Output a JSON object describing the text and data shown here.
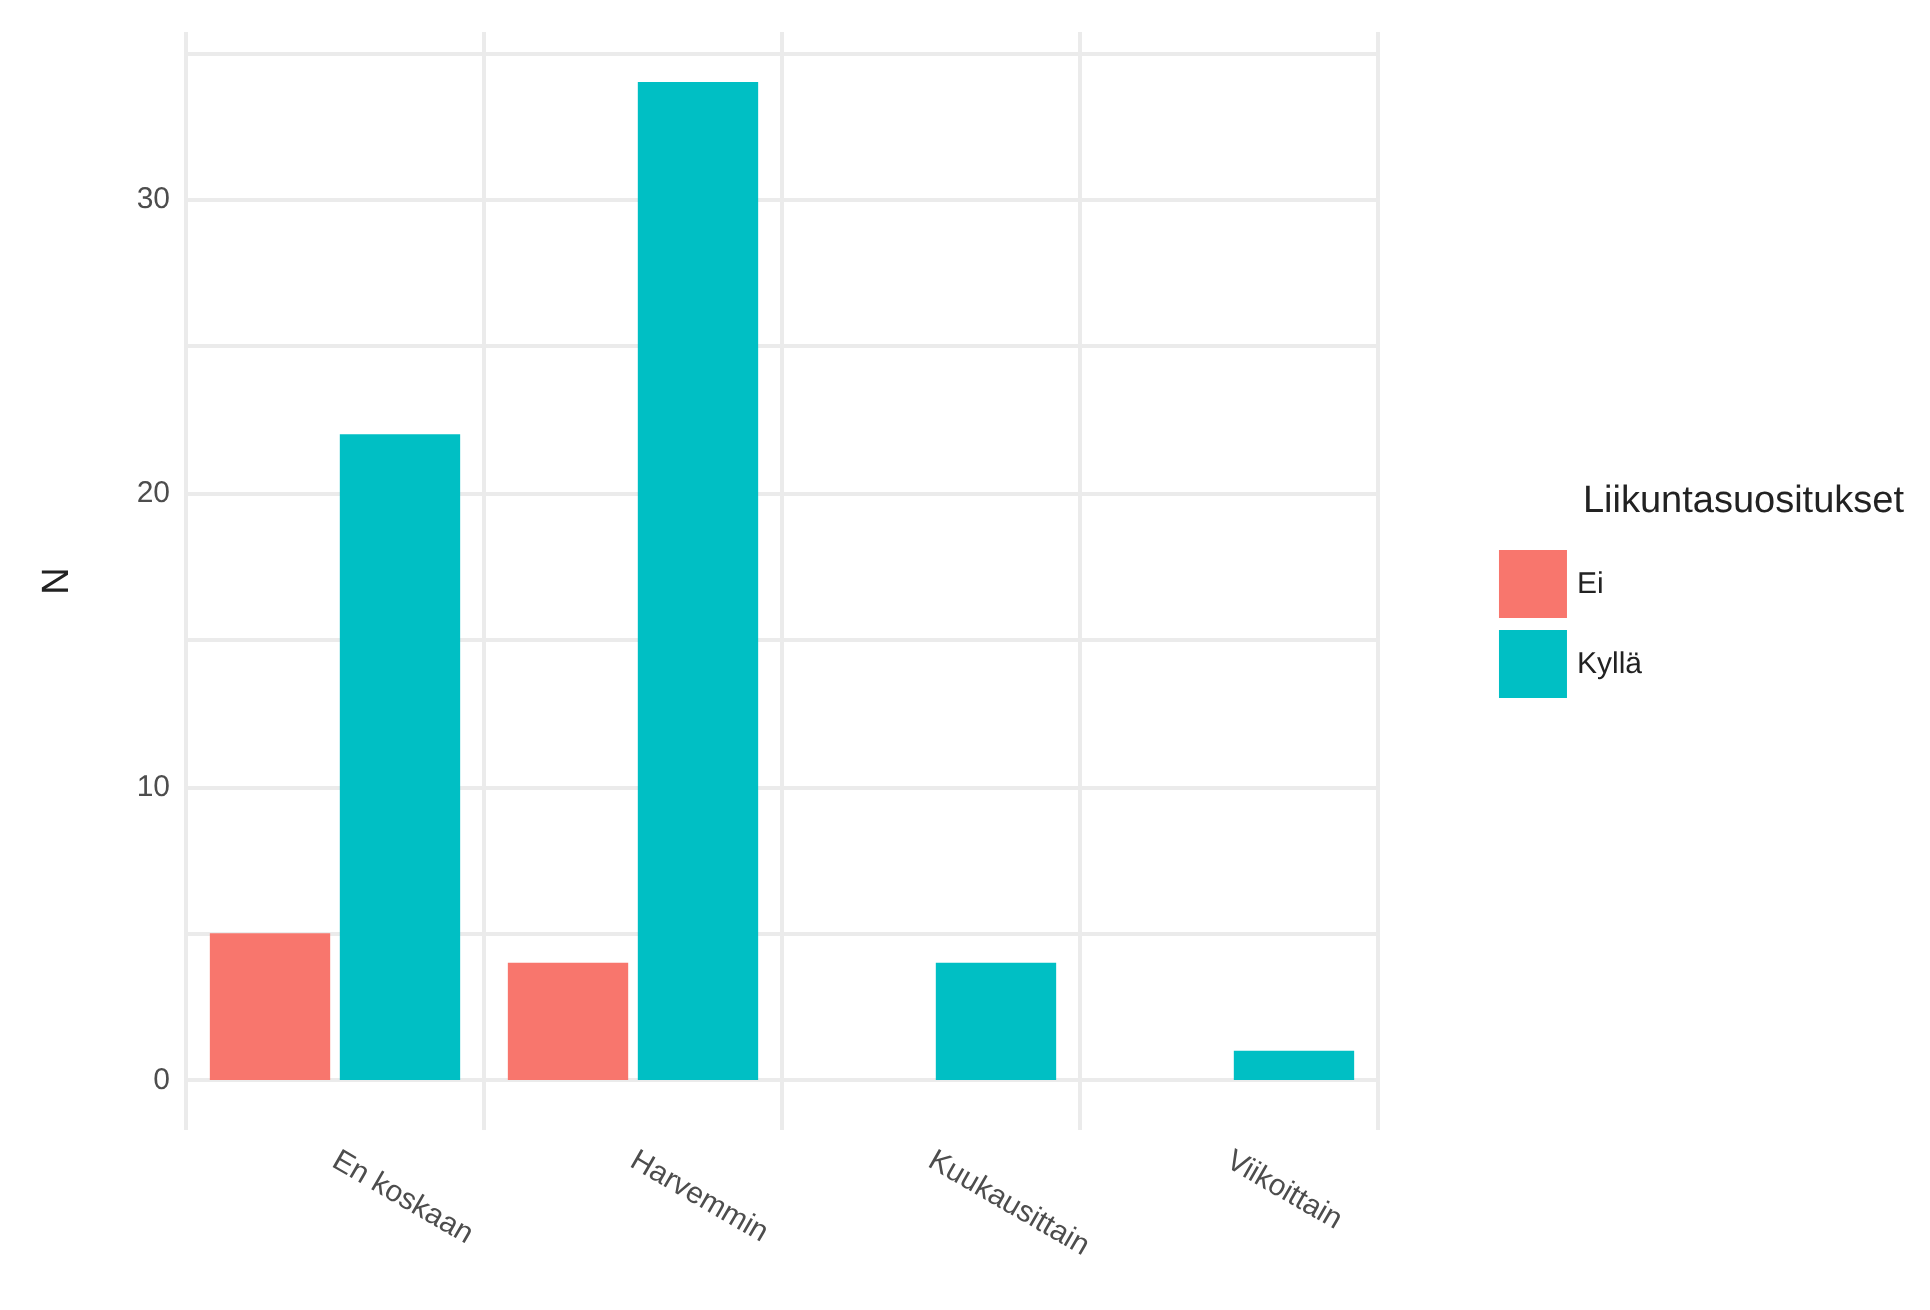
{
  "chart_data": {
    "type": "bar",
    "ylabel": "N",
    "legend_title": "Liikuntasuositukset",
    "categories": [
      "En koskaan",
      "Harvemmin",
      "Kuukausittain",
      "Viikoittain"
    ],
    "series": [
      {
        "name": "Ei",
        "color": "#f8766d",
        "values": [
          5,
          4,
          null,
          null
        ]
      },
      {
        "name": "Kyllä",
        "color": "#00bfc4",
        "values": [
          22,
          34,
          4,
          1
        ]
      }
    ],
    "ylim": [
      -1.7,
      35.7
    ],
    "yticks": [
      0,
      {
        "value": 5,
        "label": null
      },
      10,
      {
        "value": 15,
        "label": null
      },
      20,
      {
        "value": 25,
        "label": null
      },
      30,
      {
        "value": 35,
        "label": null
      }
    ],
    "grid": true,
    "legend": "right"
  }
}
